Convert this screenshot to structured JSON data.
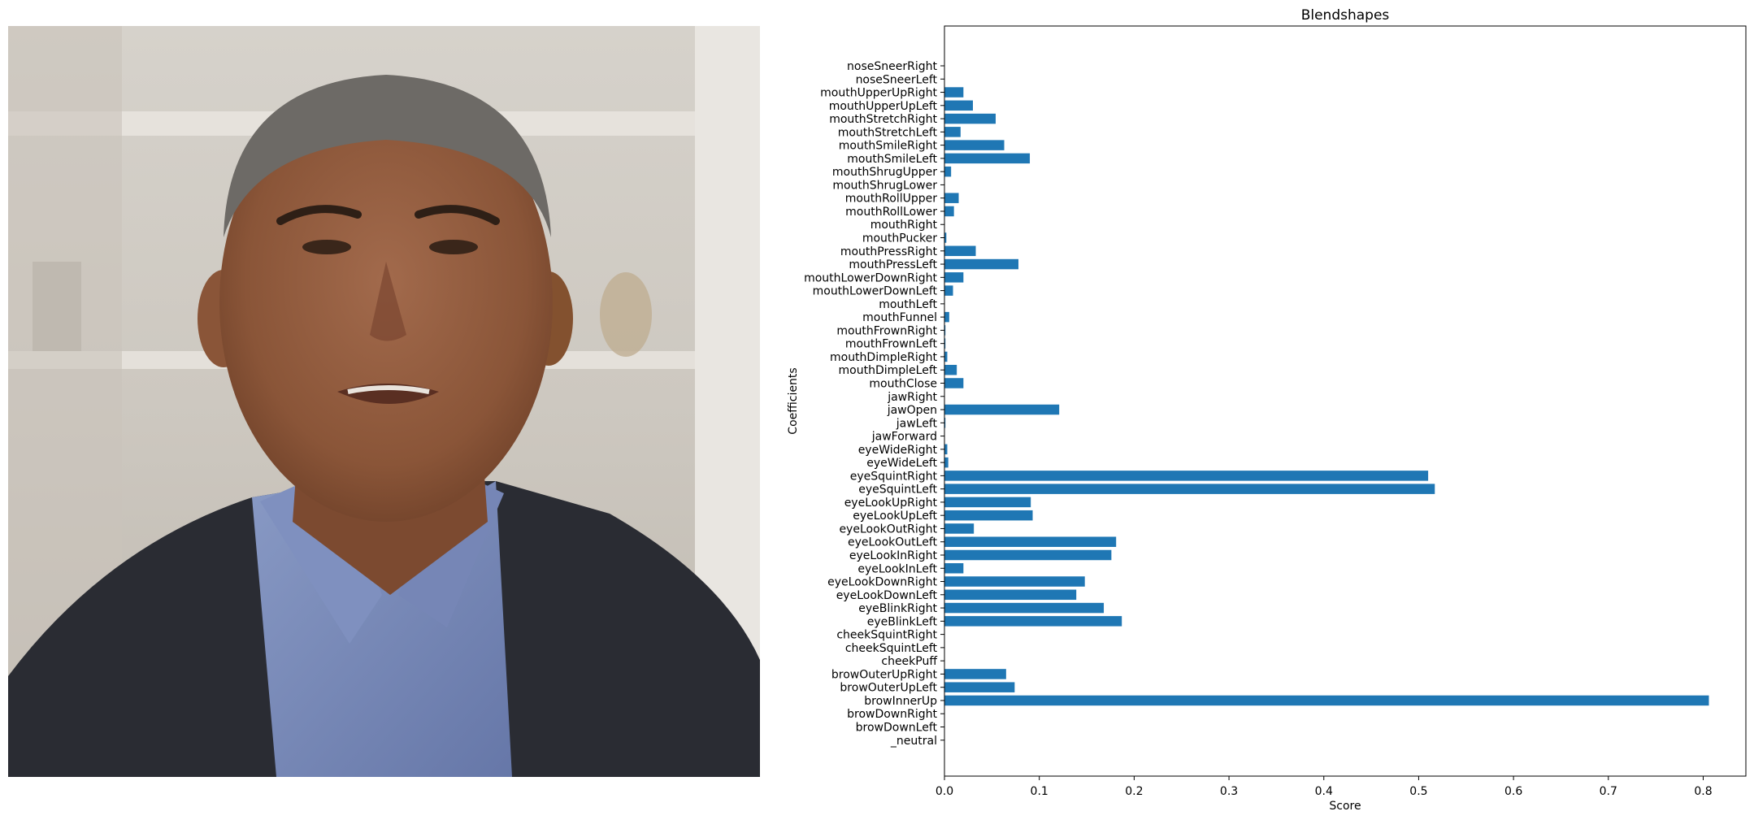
{
  "chart_data": {
    "type": "bar",
    "orientation": "horizontal",
    "title": "Blendshapes",
    "xlabel": "Score",
    "ylabel": "Coefficients",
    "xlim": [
      0,
      0.845
    ],
    "xticks": [
      0.0,
      0.1,
      0.2,
      0.3,
      0.4,
      0.5,
      0.6,
      0.7,
      0.8
    ],
    "xtick_labels": [
      "0.0",
      "0.1",
      "0.2",
      "0.3",
      "0.4",
      "0.5",
      "0.6",
      "0.7",
      "0.8"
    ],
    "grid": false,
    "bar_color": "#1f77b4",
    "categories": [
      "_neutral",
      "browDownLeft",
      "browDownRight",
      "browInnerUp",
      "browOuterUpLeft",
      "browOuterUpRight",
      "cheekPuff",
      "cheekSquintLeft",
      "cheekSquintRight",
      "eyeBlinkLeft",
      "eyeBlinkRight",
      "eyeLookDownLeft",
      "eyeLookDownRight",
      "eyeLookInLeft",
      "eyeLookInRight",
      "eyeLookOutLeft",
      "eyeLookOutRight",
      "eyeLookUpLeft",
      "eyeLookUpRight",
      "eyeSquintLeft",
      "eyeSquintRight",
      "eyeWideLeft",
      "eyeWideRight",
      "jawForward",
      "jawLeft",
      "jawOpen",
      "jawRight",
      "mouthClose",
      "mouthDimpleLeft",
      "mouthDimpleRight",
      "mouthFrownLeft",
      "mouthFrownRight",
      "mouthFunnel",
      "mouthLeft",
      "mouthLowerDownLeft",
      "mouthLowerDownRight",
      "mouthPressLeft",
      "mouthPressRight",
      "mouthPucker",
      "mouthRight",
      "mouthRollLower",
      "mouthRollUpper",
      "mouthShrugLower",
      "mouthShrugUpper",
      "mouthSmileLeft",
      "mouthSmileRight",
      "mouthStretchLeft",
      "mouthStretchRight",
      "mouthUpperUpLeft",
      "mouthUpperUpRight",
      "noseSneerLeft",
      "noseSneerRight"
    ],
    "values": [
      0.0,
      0.0,
      0.0,
      0.806,
      0.074,
      0.065,
      0.0,
      0.0,
      0.0,
      0.187,
      0.168,
      0.139,
      0.148,
      0.02,
      0.176,
      0.181,
      0.031,
      0.093,
      0.091,
      0.517,
      0.51,
      0.004,
      0.003,
      0.0,
      0.001,
      0.121,
      0.0,
      0.02,
      0.013,
      0.003,
      0.001,
      0.001,
      0.005,
      0.0,
      0.009,
      0.02,
      0.078,
      0.033,
      0.002,
      0.0,
      0.01,
      0.015,
      0.0,
      0.007,
      0.09,
      0.063,
      0.017,
      0.054,
      0.03,
      0.02,
      0.0,
      0.0
    ]
  }
}
